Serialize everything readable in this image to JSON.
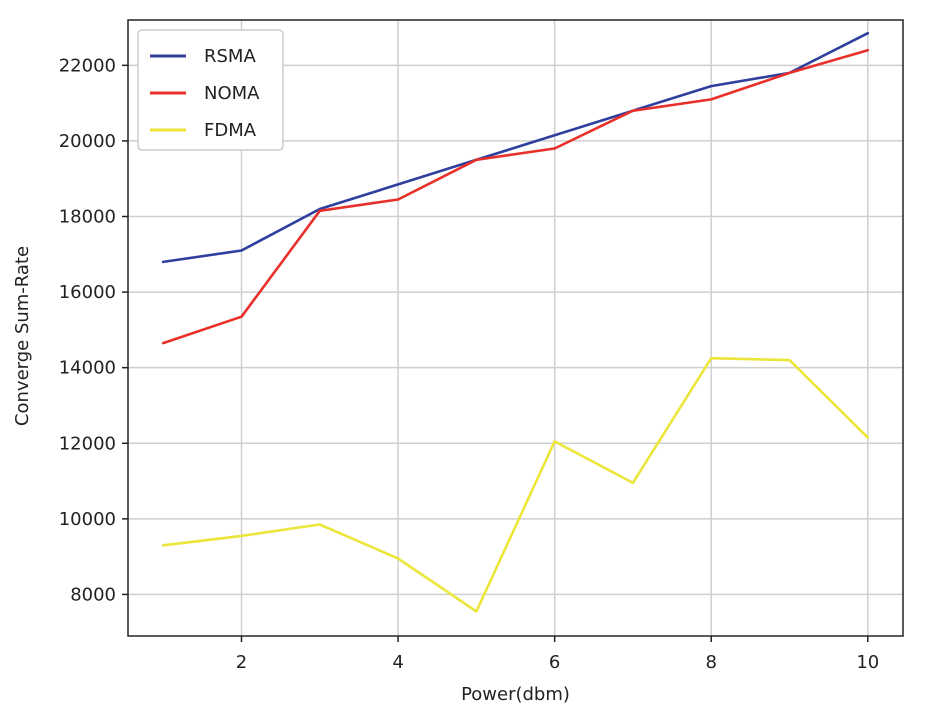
{
  "chart_data": {
    "type": "line",
    "title": "",
    "xlabel": "Power(dbm)",
    "ylabel": "Converge Sum-Rate",
    "xlim": [
      0.55,
      10.45
    ],
    "ylim": [
      6900,
      23200
    ],
    "xticks": [
      2,
      4,
      6,
      8,
      10
    ],
    "yticks": [
      8000,
      10000,
      12000,
      14000,
      16000,
      18000,
      20000,
      22000
    ],
    "grid": true,
    "legend_position": "top-left",
    "x": [
      1,
      2,
      3,
      4,
      5,
      6,
      7,
      8,
      9,
      10
    ],
    "series": [
      {
        "name": "RSMA",
        "color": "#2f3f9e",
        "values": [
          16800,
          17100,
          18200,
          18850,
          19500,
          20150,
          20800,
          21450,
          21800,
          22850
        ]
      },
      {
        "name": "NOMA",
        "color": "#e8302a",
        "values": [
          14650,
          15350,
          18150,
          18450,
          19500,
          19800,
          20800,
          21100,
          21800,
          22400
        ]
      },
      {
        "name": "FDMA",
        "color": "#ece53a",
        "values": [
          9300,
          9550,
          9850,
          8950,
          7550,
          12050,
          10950,
          14250,
          14200,
          12150
        ]
      }
    ]
  }
}
